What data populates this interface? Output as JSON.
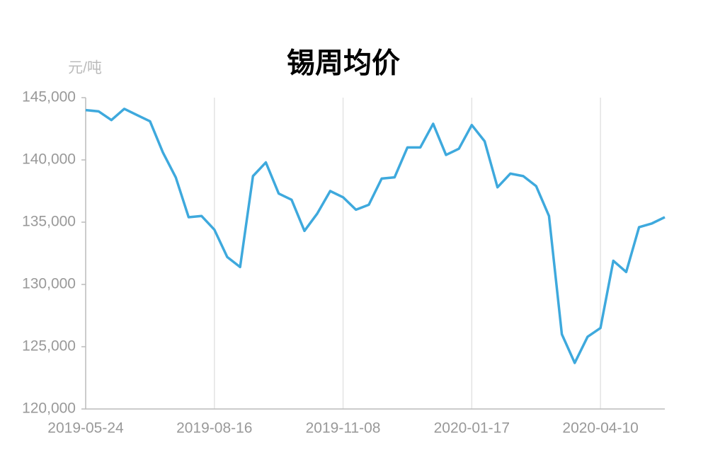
{
  "chart_data": {
    "type": "line",
    "title": "锡周均价",
    "y_label": "元/吨",
    "categories": [
      "2019-05-24",
      null,
      null,
      null,
      null,
      null,
      null,
      null,
      null,
      null,
      "2019-08-16",
      null,
      null,
      null,
      null,
      null,
      null,
      null,
      null,
      null,
      "2019-11-08",
      null,
      null,
      null,
      null,
      null,
      null,
      null,
      null,
      null,
      "2020-01-17",
      null,
      null,
      null,
      null,
      null,
      null,
      null,
      null,
      null,
      "2020-04-10",
      null,
      null,
      null,
      null,
      null
    ],
    "series": [
      {
        "name": "锡周均价",
        "color": "#3ea9dd",
        "values": [
          144000,
          143900,
          143200,
          144100,
          143600,
          143100,
          140600,
          138600,
          135400,
          135500,
          134400,
          132200,
          131400,
          138700,
          139800,
          137300,
          136800,
          134300,
          135700,
          137500,
          137000,
          136000,
          136400,
          138500,
          138600,
          141000,
          141000,
          142900,
          140400,
          140900,
          142800,
          141500,
          137800,
          138900,
          138700,
          137900,
          135500,
          126000,
          123700,
          125800,
          126500,
          131900,
          131000,
          134600,
          134900,
          135400
        ]
      }
    ],
    "ylim": [
      120000,
      145000
    ],
    "yticks": [
      {
        "value": 120000,
        "label": "120,000"
      },
      {
        "value": 125000,
        "label": "125,000"
      },
      {
        "value": 130000,
        "label": "130,000"
      },
      {
        "value": 135000,
        "label": "135,000"
      },
      {
        "value": 140000,
        "label": "140,000"
      },
      {
        "value": 145000,
        "label": "145,000"
      }
    ],
    "grid": true
  }
}
